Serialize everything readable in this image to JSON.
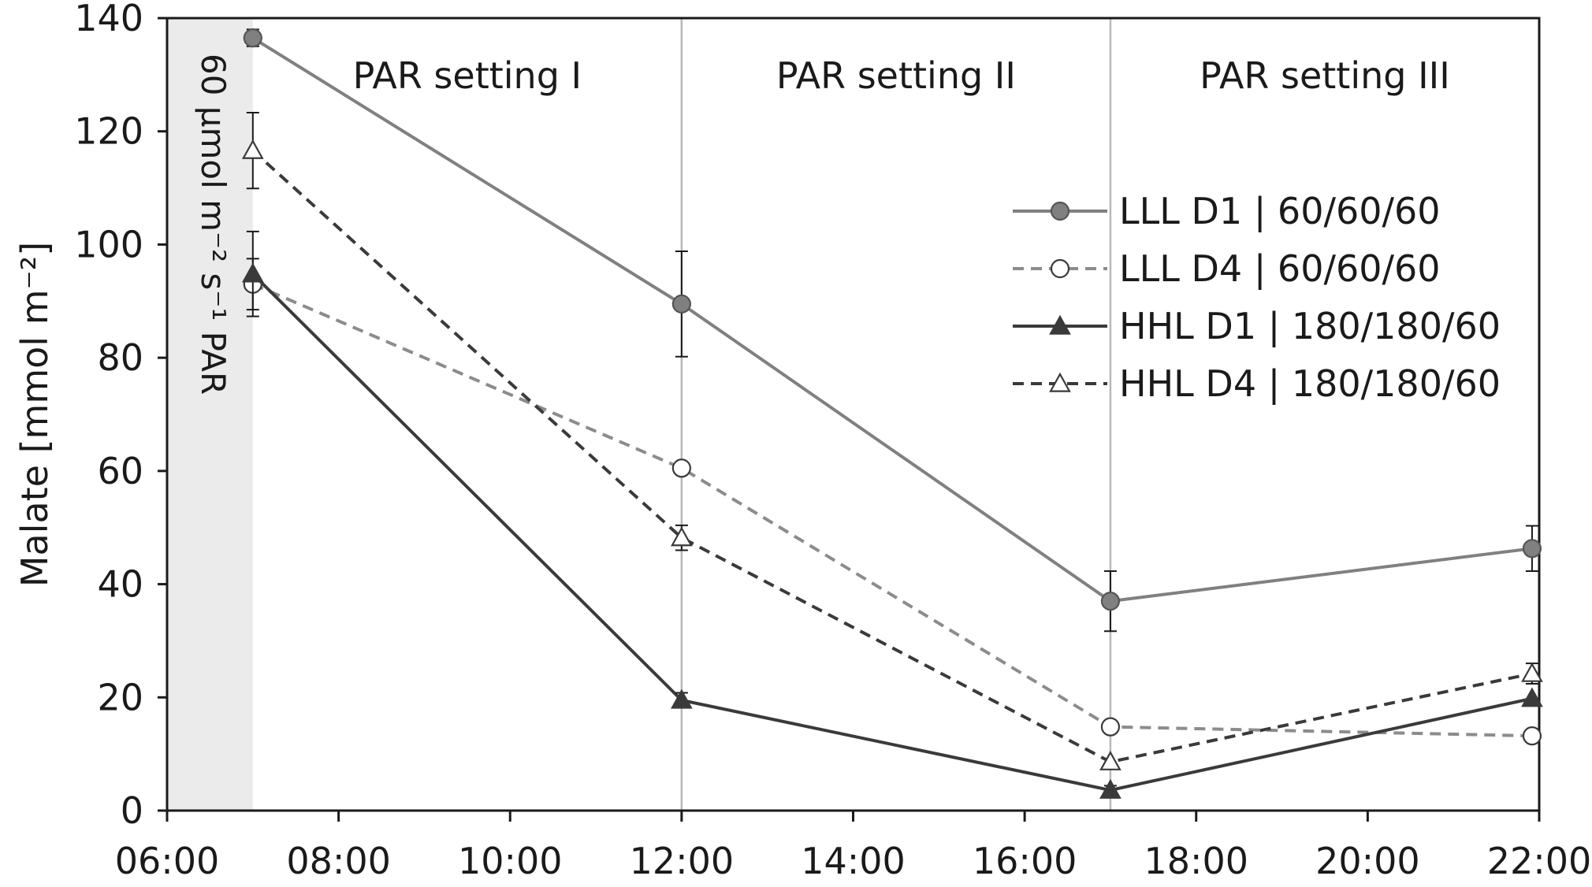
{
  "chart_data": {
    "type": "line",
    "xlabel": "",
    "ylabel": "Malate [mmol m⁻²]",
    "xlim": [
      "06:00",
      "22:00"
    ],
    "ylim": [
      0,
      140
    ],
    "x_ticks": [
      "06:00",
      "08:00",
      "10:00",
      "12:00",
      "14:00",
      "16:00",
      "18:00",
      "20:00",
      "22:00"
    ],
    "y_ticks": [
      0,
      20,
      40,
      60,
      80,
      100,
      120,
      140
    ],
    "grid": false,
    "legend_position": "right",
    "dividers": [
      "12:00",
      "17:00"
    ],
    "shaded_region": {
      "from": "06:00",
      "to": "07:00",
      "label": "60 µmol m⁻² s⁻¹ PAR",
      "color": "#ebebeb"
    },
    "band_labels": [
      "PAR setting I",
      "PAR setting II",
      "PAR setting III"
    ],
    "x": [
      "07:00",
      "12:00",
      "17:00",
      "21:55"
    ],
    "series": [
      {
        "name": "LLL D1 | 60/60/60",
        "values": [
          136.5,
          89.5,
          37,
          46.3
        ],
        "error": [
          1.5,
          9.3,
          5.3,
          4
        ],
        "color": "#808080",
        "marker": "circle",
        "marker_fill": "#808080",
        "dash": false
      },
      {
        "name": "LLL D4 | 60/60/60",
        "values": [
          93,
          60.5,
          14.8,
          13.2
        ],
        "error": [
          4.5,
          0,
          0,
          0
        ],
        "color": "#8c8c8c",
        "marker": "circle",
        "marker_fill": "#ffffff",
        "dash": true
      },
      {
        "name": "HHL D1 | 180/180/60",
        "values": [
          94.8,
          19.5,
          3.6,
          19.8
        ],
        "error": [
          7.5,
          1.3,
          0.8,
          0
        ],
        "color": "#3a3a3a",
        "marker": "triangle",
        "marker_fill": "#3a3a3a",
        "dash": false
      },
      {
        "name": "HHL D4 | 180/180/60",
        "values": [
          116.6,
          48.2,
          8.6,
          24.2
        ],
        "error": [
          6.7,
          2.2,
          0,
          1.8
        ],
        "color": "#3a3a3a",
        "marker": "triangle",
        "marker_fill": "#ffffff",
        "dash": true
      }
    ]
  }
}
